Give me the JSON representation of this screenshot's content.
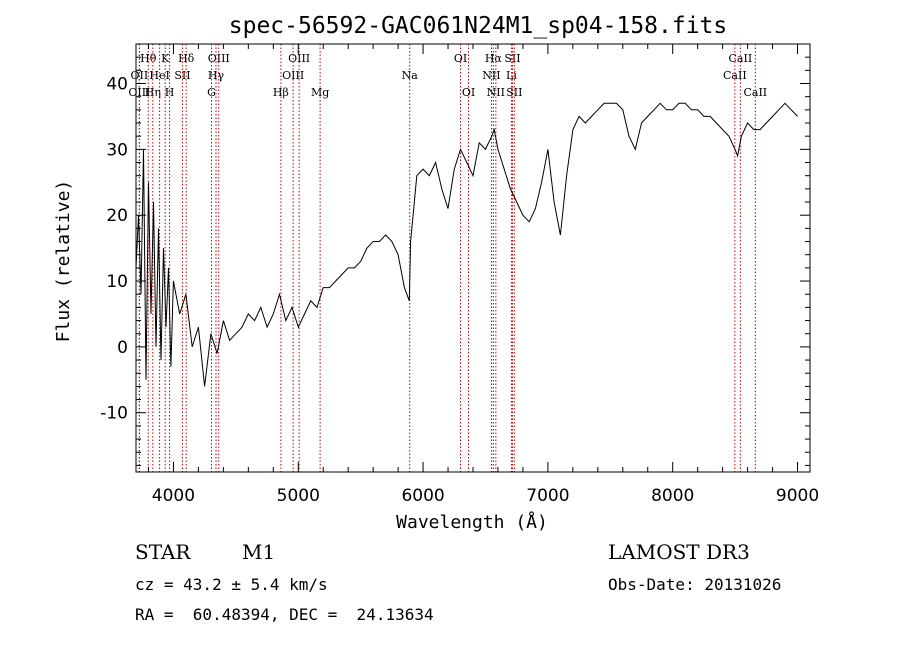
{
  "chart_data": {
    "type": "line",
    "title": "spec-56592-GAC061N24M1_sp04-158.fits",
    "xlabel": "Wavelength (Å)",
    "ylabel": "Flux (relative)",
    "xlim": [
      3700,
      9100
    ],
    "ylim": [
      -19,
      46
    ],
    "x_ticks": [
      4000,
      5000,
      6000,
      7000,
      8000,
      9000
    ],
    "y_ticks": [
      -10,
      0,
      10,
      20,
      30,
      40
    ],
    "grid": false,
    "line_markers": [
      {
        "label": "Hθ",
        "wavelength": 3798,
        "row": 0
      },
      {
        "label": "OII",
        "wavelength": 3727,
        "row": 1
      },
      {
        "label": "OIII",
        "wavelength": 3727,
        "row": 2
      },
      {
        "label": "K",
        "wavelength": 3934,
        "row": 0
      },
      {
        "label": "HeI",
        "wavelength": 3889,
        "row": 1
      },
      {
        "label": "Hη",
        "wavelength": 3835,
        "row": 2
      },
      {
        "label": "H",
        "wavelength": 3969,
        "row": 2
      },
      {
        "label": "SII",
        "wavelength": 4072,
        "row": 1
      },
      {
        "label": "Hδ",
        "wavelength": 4102,
        "row": 0
      },
      {
        "label": "OIII",
        "wavelength": 4363,
        "row": 0
      },
      {
        "label": "Hγ",
        "wavelength": 4341,
        "row": 1
      },
      {
        "label": "G",
        "wavelength": 4305,
        "row": 2
      },
      {
        "label": "OIII",
        "wavelength": 5007,
        "row": 0
      },
      {
        "label": "OIII",
        "wavelength": 4959,
        "row": 1
      },
      {
        "label": "Hβ",
        "wavelength": 4861,
        "row": 2
      },
      {
        "label": "Mg",
        "wavelength": 5175,
        "row": 2
      },
      {
        "label": "Na",
        "wavelength": 5893,
        "row": 1
      },
      {
        "label": "OI",
        "wavelength": 6300,
        "row": 0
      },
      {
        "label": "OI",
        "wavelength": 6364,
        "row": 2
      },
      {
        "label": "Hα",
        "wavelength": 6563,
        "row": 0
      },
      {
        "label": "NII",
        "wavelength": 6548,
        "row": 1
      },
      {
        "label": "NII",
        "wavelength": 6583,
        "row": 2
      },
      {
        "label": "SII",
        "wavelength": 6716,
        "row": 0
      },
      {
        "label": "Li",
        "wavelength": 6708,
        "row": 1
      },
      {
        "label": "SII",
        "wavelength": 6731,
        "row": 2
      },
      {
        "label": "CaII",
        "wavelength": 8542,
        "row": 0
      },
      {
        "label": "CaII",
        "wavelength": 8498,
        "row": 1
      },
      {
        "label": "CaII",
        "wavelength": 8662,
        "row": 2
      }
    ],
    "series": [
      {
        "x": [
          3700,
          3720,
          3740,
          3760,
          3780,
          3800,
          3820,
          3840,
          3860,
          3880,
          3900,
          3920,
          3940,
          3960,
          3980,
          4000,
          4050,
          4100,
          4150,
          4200,
          4250,
          4300,
          4350,
          4400,
          4450,
          4500,
          4550,
          4600,
          4650,
          4700,
          4750,
          4800,
          4850,
          4900,
          4950,
          5000,
          5050,
          5100,
          5150,
          5200,
          5250,
          5300,
          5350,
          5400,
          5450,
          5500,
          5550,
          5600,
          5650,
          5700,
          5750,
          5800,
          5850,
          5890,
          5900,
          5920,
          5950,
          6000,
          6050,
          6100,
          6150,
          6200,
          6250,
          6300,
          6350,
          6400,
          6450,
          6500,
          6550,
          6570,
          6600,
          6650,
          6700,
          6750,
          6800,
          6850,
          6900,
          6950,
          7000,
          7050,
          7100,
          7150,
          7200,
          7250,
          7300,
          7350,
          7400,
          7450,
          7500,
          7550,
          7600,
          7650,
          7700,
          7750,
          7800,
          7850,
          7900,
          7950,
          8000,
          8050,
          8100,
          8150,
          8200,
          8250,
          8300,
          8350,
          8400,
          8450,
          8500,
          8520,
          8550,
          8600,
          8650,
          8700,
          8750,
          8800,
          8850,
          8900,
          8950,
          9000
        ],
        "y": [
          12,
          20,
          8,
          30,
          -5,
          25,
          5,
          22,
          0,
          18,
          -2,
          15,
          3,
          12,
          -3,
          10,
          5,
          8,
          0,
          3,
          -6,
          2,
          -1,
          4,
          1,
          2,
          3,
          5,
          4,
          6,
          3,
          5,
          8,
          4,
          6,
          3,
          5,
          7,
          6,
          9,
          9,
          10,
          11,
          12,
          12,
          13,
          15,
          16,
          16,
          17,
          16,
          14,
          9,
          7,
          16,
          20,
          26,
          27,
          26,
          28,
          24,
          21,
          27,
          30,
          28,
          26,
          31,
          30,
          32,
          33,
          30,
          27,
          24,
          22,
          20,
          19,
          21,
          25,
          30,
          22,
          17,
          26,
          33,
          35,
          34,
          35,
          36,
          37,
          37,
          37,
          36,
          32,
          30,
          34,
          35,
          36,
          37,
          36,
          36,
          37,
          37,
          36,
          36,
          35,
          35,
          34,
          33,
          32,
          30,
          29,
          32,
          34,
          33,
          33,
          34,
          35,
          36,
          37,
          36,
          35
        ]
      }
    ]
  },
  "footer": {
    "object_type": "STAR",
    "subclass": "M1",
    "survey": "LAMOST DR3",
    "cz": "cz = 43.2 ± 5.4 km/s",
    "obs_date": "Obs-Date: 20131026",
    "coords": "RA =  60.48394, DEC =  24.13634"
  }
}
